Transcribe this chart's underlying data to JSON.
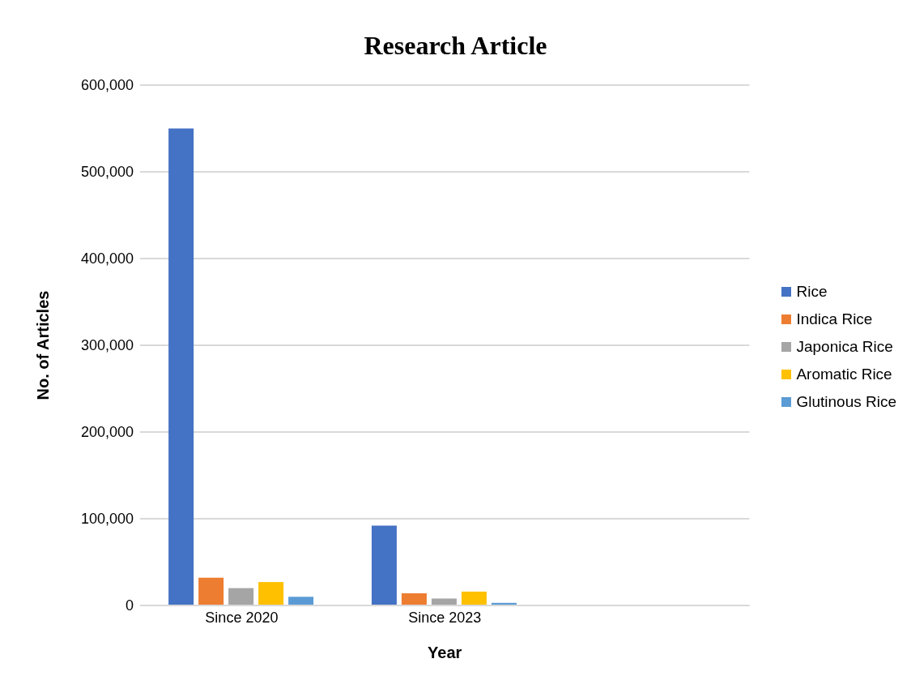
{
  "chart_data": {
    "type": "bar",
    "title": "Research Article",
    "xlabel": "Year",
    "ylabel": "No. of Articles",
    "categories": [
      "Since 2020",
      "Since 2023",
      null
    ],
    "series": [
      {
        "name": "Rice",
        "color": "#4472c4",
        "values": [
          550000,
          92000,
          null
        ]
      },
      {
        "name": "Indica Rice",
        "color": "#ed7d31",
        "values": [
          32000,
          14000,
          null
        ]
      },
      {
        "name": "Japonica Rice",
        "color": "#a5a5a5",
        "values": [
          20000,
          8000,
          null
        ]
      },
      {
        "name": "Aromatic Rice",
        "color": "#ffc000",
        "values": [
          27000,
          16000,
          null
        ]
      },
      {
        "name": "Glutinous Rice",
        "color": "#5b9bd5",
        "values": [
          10000,
          3000,
          null
        ]
      }
    ],
    "ylim": [
      0,
      600000
    ],
    "yticks": [
      0,
      {
        "value": 100000,
        "label": "100,000"
      },
      {
        "value": 200000,
        "label": "200,000"
      },
      {
        "value": 300000,
        "label": "300,000"
      },
      {
        "value": 400000,
        "label": "400,000"
      },
      {
        "value": 500000,
        "label": "500,000"
      },
      {
        "value": 600000,
        "label": "600,000"
      }
    ],
    "grid": "y",
    "legend": "right"
  }
}
